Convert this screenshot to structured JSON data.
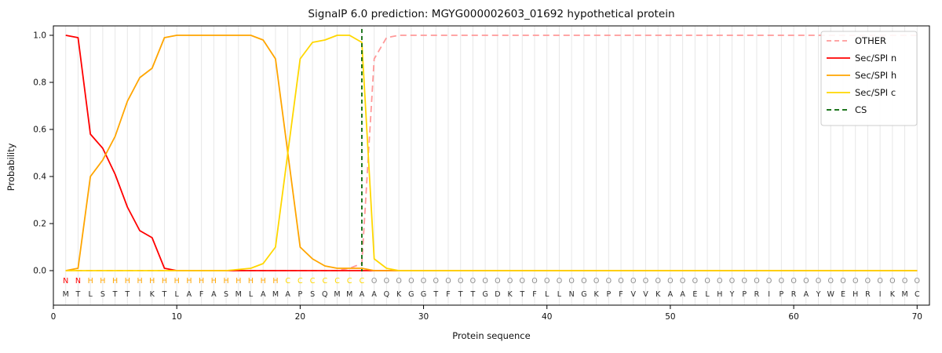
{
  "chart_data": {
    "type": "line",
    "title": "SignalP 6.0 prediction: MGYG000002603_01692 hypothetical protein",
    "xlabel": "Protein sequence",
    "ylabel": "Probability",
    "xlim": [
      0,
      71
    ],
    "ylim": [
      0.0,
      1.0
    ],
    "xticks": [
      0,
      10,
      20,
      30,
      40,
      50,
      60,
      70
    ],
    "yticks": [
      0.0,
      0.2,
      0.4,
      0.6,
      0.8,
      1.0
    ],
    "grid": "vertical-per-residue",
    "grid_color": "#e7e7e7",
    "legend_position": "upper right",
    "cs_position": 25,
    "series": [
      {
        "name": "OTHER",
        "color": "#ff9999",
        "dash": true,
        "values": [
          0,
          0,
          0,
          0,
          0,
          0,
          0,
          0,
          0,
          0,
          0,
          0,
          0,
          0,
          0,
          0,
          0,
          0,
          0,
          0,
          0,
          0,
          0,
          0.01,
          0.03,
          0.9,
          0.99,
          1,
          1,
          1,
          1,
          1,
          1,
          1,
          1,
          1,
          1,
          1,
          1,
          1,
          1,
          1,
          1,
          1,
          1,
          1,
          1,
          1,
          1,
          1,
          1,
          1,
          1,
          1,
          1,
          1,
          1,
          1,
          1,
          1,
          1,
          1,
          1,
          1,
          1,
          1,
          1,
          1,
          1,
          1
        ]
      },
      {
        "name": "Sec/SPI n",
        "color": "#ff0000",
        "dash": false,
        "values": [
          1,
          0.99,
          0.58,
          0.52,
          0.41,
          0.27,
          0.17,
          0.14,
          0.01,
          0,
          0,
          0,
          0,
          0,
          0,
          0,
          0,
          0,
          0,
          0,
          0,
          0,
          0,
          0,
          0,
          0,
          0,
          0,
          0,
          0,
          0,
          0,
          0,
          0,
          0,
          0,
          0,
          0,
          0,
          0,
          0,
          0,
          0,
          0,
          0,
          0,
          0,
          0,
          0,
          0,
          0,
          0,
          0,
          0,
          0,
          0,
          0,
          0,
          0,
          0,
          0,
          0,
          0,
          0,
          0,
          0,
          0,
          0,
          0,
          0
        ]
      },
      {
        "name": "Sec/SPI h",
        "color": "#ffa500",
        "dash": false,
        "values": [
          0,
          0.01,
          0.4,
          0.47,
          0.57,
          0.72,
          0.82,
          0.86,
          0.99,
          1,
          1,
          1,
          1,
          1,
          1,
          1,
          0.98,
          0.9,
          0.5,
          0.1,
          0.05,
          0.02,
          0.01,
          0.01,
          0.01,
          0,
          0,
          0,
          0,
          0,
          0,
          0,
          0,
          0,
          0,
          0,
          0,
          0,
          0,
          0,
          0,
          0,
          0,
          0,
          0,
          0,
          0,
          0,
          0,
          0,
          0,
          0,
          0,
          0,
          0,
          0,
          0,
          0,
          0,
          0,
          0,
          0,
          0,
          0,
          0,
          0,
          0,
          0,
          0,
          0
        ]
      },
      {
        "name": "Sec/SPI c",
        "color": "#ffd700",
        "dash": false,
        "values": [
          0,
          0,
          0,
          0,
          0,
          0,
          0,
          0,
          0,
          0,
          0,
          0,
          0,
          0,
          0.005,
          0.01,
          0.03,
          0.1,
          0.5,
          0.9,
          0.97,
          0.98,
          1,
          1,
          0.97,
          0.05,
          0.01,
          0,
          0,
          0,
          0,
          0,
          0,
          0,
          0,
          0,
          0,
          0,
          0,
          0,
          0,
          0,
          0,
          0,
          0,
          0,
          0,
          0,
          0,
          0,
          0,
          0,
          0,
          0,
          0,
          0,
          0,
          0,
          0,
          0,
          0,
          0,
          0,
          0,
          0,
          0,
          0,
          0,
          0,
          0
        ]
      },
      {
        "name": "CS",
        "color": "#006400",
        "dash": true,
        "type": "vline",
        "x": 25
      }
    ],
    "sequence": "MTLSTTIKTLAFASMLAMAPSQMMAAQKGGTFTTGDKTFLLNGKPFVVKAAELHYPRIPRAYWEHRIKMC",
    "regions": [
      {
        "label": "N",
        "start": 1,
        "end": 2,
        "color": "#ff0000"
      },
      {
        "label": "H",
        "start": 3,
        "end": 18,
        "color": "#ffa500"
      },
      {
        "label": "C",
        "start": 19,
        "end": 25,
        "color": "#ffd700"
      },
      {
        "label": "O",
        "start": 26,
        "end": 70,
        "color": "#8c8c8c"
      }
    ],
    "sequence_color": "#2b2b2b"
  }
}
